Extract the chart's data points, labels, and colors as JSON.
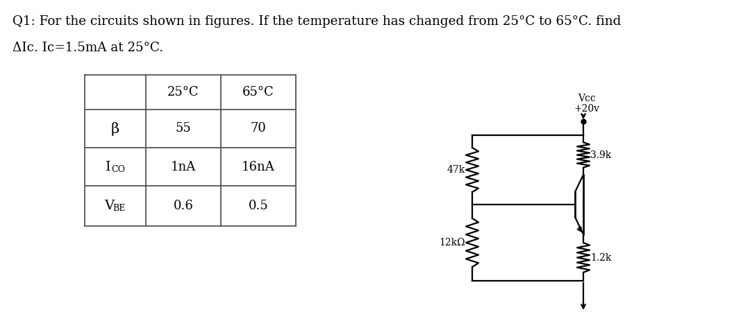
{
  "title_line1": "Q1: For the circuits shown in figures. If the temperature has changed from 25°C to 65°C. find",
  "title_line2": "ΔIc. Ic=1.5mA at 25°C.",
  "table_headers": [
    "",
    "25°C",
    "65°C"
  ],
  "table_rows": [
    [
      "β",
      "55",
      "70"
    ],
    [
      "Ico",
      "1nA",
      "16nA"
    ],
    [
      "VBE",
      "0.6",
      "0.5"
    ]
  ],
  "circuit_labels": {
    "vcc": "Vcc",
    "vcc_val": "+20v",
    "r1": "47k",
    "r2": "3.9k",
    "r3": "12kΩ",
    "r4": "1.2k"
  },
  "bg_color": "#ffffff",
  "text_color": "#000000",
  "line_color": "#555555"
}
